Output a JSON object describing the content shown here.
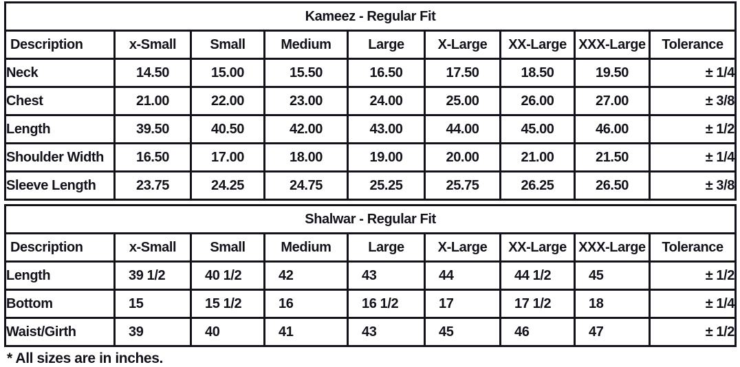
{
  "note": "* All sizes are in inches.",
  "colors": {
    "title_bg": "#A5C8EA",
    "header_bg": "#D9D9D9",
    "text": "#12121A"
  },
  "columns": [
    "Description",
    "x-Small",
    "Small",
    "Medium",
    "Large",
    "X-Large",
    "XX-Large",
    "XXX-Large",
    "Tolerance"
  ],
  "tables": [
    {
      "title": "Kameez - Regular Fit",
      "value_align": "center",
      "rows": [
        {
          "label": "Neck",
          "values": [
            "14.50",
            "15.00",
            "15.50",
            "16.50",
            "17.50",
            "18.50",
            "19.50"
          ],
          "tolerance": "± 1/4"
        },
        {
          "label": "Chest",
          "values": [
            "21.00",
            "22.00",
            "23.00",
            "24.00",
            "25.00",
            "26.00",
            "27.00"
          ],
          "tolerance": "± 3/8"
        },
        {
          "label": "Length",
          "values": [
            "39.50",
            "40.50",
            "42.00",
            "43.00",
            "44.00",
            "45.00",
            "46.00"
          ],
          "tolerance": "± 1/2"
        },
        {
          "label": "Shoulder Width",
          "values": [
            "16.50",
            "17.00",
            "18.00",
            "19.00",
            "20.00",
            "21.00",
            "21.50"
          ],
          "tolerance": "± 1/4"
        },
        {
          "label": "Sleeve Length",
          "values": [
            "23.75",
            "24.25",
            "24.75",
            "25.25",
            "25.75",
            "26.25",
            "26.50"
          ],
          "tolerance": "± 3/8"
        }
      ]
    },
    {
      "title": "Shalwar - Regular Fit",
      "value_align": "left",
      "rows": [
        {
          "label": "Length",
          "values": [
            "39 1/2",
            "40 1/2",
            "42",
            "43",
            "44",
            "44 1/2",
            "45"
          ],
          "tolerance": "± 1/2"
        },
        {
          "label": "Bottom",
          "values": [
            "15",
            "15 1/2",
            "16",
            "16 1/2",
            "17",
            "17 1/2",
            "18"
          ],
          "tolerance": "± 1/4"
        },
        {
          "label": "Waist/Girth",
          "values": [
            "39",
            "40",
            "41",
            "43",
            "45",
            "46",
            "47"
          ],
          "tolerance": "± 1/2"
        }
      ]
    }
  ]
}
